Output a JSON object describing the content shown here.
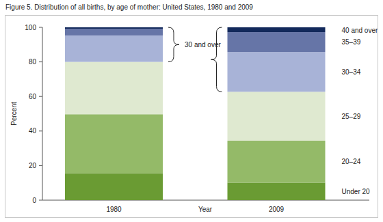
{
  "chart_data": {
    "type": "bar",
    "stacked": true,
    "title": "Figure 5. Distribution of all births, by age of mother: United States, 1980 and 2009",
    "x_label": "Year",
    "y_label": "Percent",
    "annotations": [
      "30 and over"
    ],
    "categories": [
      "1980",
      "2009"
    ],
    "series": [
      {
        "name": "Under 20",
        "color": "#6a9b33",
        "values": [
          15.6,
          10.1
        ]
      },
      {
        "name": "20–24",
        "color": "#94ba68",
        "values": [
          34.1,
          24.3
        ]
      },
      {
        "name": "25–29",
        "color": "#dfe9d0",
        "values": [
          30.3,
          28.3
        ]
      },
      {
        "name": "30–34",
        "color": "#a8b3d7",
        "values": [
          15.3,
          23.0
        ]
      },
      {
        "name": "35–39",
        "color": "#6675a7",
        "values": [
          3.9,
          11.5
        ]
      },
      {
        "name": "40 and over",
        "color": "#12295b",
        "values": [
          0.8,
          2.8
        ]
      }
    ],
    "ylim": [
      0,
      100
    ],
    "yticks": [
      0,
      20,
      40,
      60,
      80,
      100
    ],
    "grid": false
  }
}
